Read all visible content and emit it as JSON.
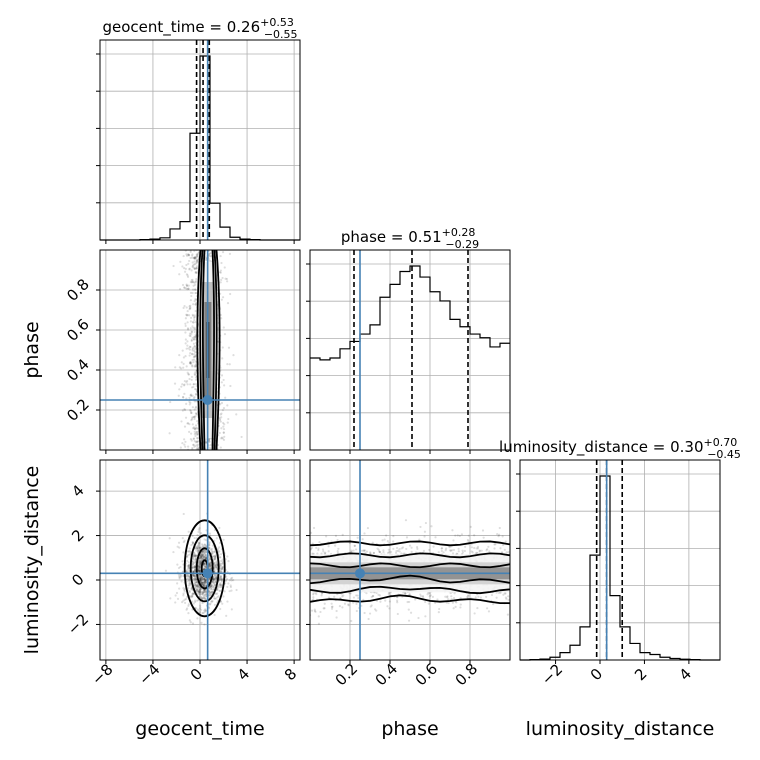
{
  "chart_data": {
    "type": "corner",
    "parameters": [
      {
        "name": "geocent_time",
        "title": "geocent_time = 0.26",
        "title_sup": "+0.53",
        "title_sub": "−0.55",
        "xlim": [
          -8.5,
          8.5
        ],
        "ticks": [
          -8,
          -4,
          0,
          4,
          8
        ],
        "tick_labels": [
          "−8",
          "−4",
          "0",
          "4",
          "8"
        ],
        "truth": 0.65,
        "quantiles": [
          -0.29,
          0.26,
          0.79
        ],
        "hist_edges": [
          -8.5,
          -7.65,
          -6.8,
          -5.95,
          -5.1,
          -4.25,
          -3.4,
          -2.55,
          -1.7,
          -0.85,
          0.0,
          0.85,
          1.7,
          2.55,
          3.4,
          4.25,
          5.1,
          5.95,
          6.8,
          7.65,
          8.5
        ],
        "hist_values": [
          0,
          0,
          0,
          0,
          0.002,
          0.005,
          0.012,
          0.06,
          0.1,
          0.58,
          1.0,
          0.2,
          0.07,
          0.015,
          0.005,
          0.002,
          0,
          0,
          0,
          0
        ]
      },
      {
        "name": "phase",
        "title": "phase = 0.51",
        "title_sup": "+0.28",
        "title_sub": "−0.29",
        "xlim": [
          0.0,
          1.0
        ],
        "ticks": [
          0.2,
          0.4,
          0.6,
          0.8
        ],
        "tick_labels": [
          "0.2",
          "0.4",
          "0.6",
          "0.8"
        ],
        "truth": 0.25,
        "quantiles": [
          0.22,
          0.51,
          0.79
        ],
        "hist_edges": [
          0.0,
          0.05,
          0.1,
          0.15,
          0.2,
          0.25,
          0.3,
          0.35,
          0.4,
          0.45,
          0.5,
          0.55,
          0.6,
          0.65,
          0.7,
          0.75,
          0.8,
          0.85,
          0.9,
          0.95,
          1.0
        ],
        "hist_values": [
          0.5,
          0.49,
          0.5,
          0.55,
          0.59,
          0.63,
          0.68,
          0.83,
          0.9,
          0.97,
          1.0,
          0.94,
          0.86,
          0.81,
          0.71,
          0.67,
          0.63,
          0.61,
          0.56,
          0.58
        ]
      },
      {
        "name": "luminosity_distance",
        "title": "luminosity_distance = 0.30",
        "title_sup": "+0.70",
        "title_sub": "−0.45",
        "xlim": [
          -3.6,
          5.4
        ],
        "ticks": [
          -2,
          0,
          2,
          4
        ],
        "tick_labels": [
          "−2",
          "0",
          "2",
          "4"
        ],
        "truth": 0.3,
        "quantiles": [
          -0.15,
          0.3,
          1.0
        ],
        "hist_edges": [
          -3.6,
          -3.15,
          -2.7,
          -2.25,
          -1.8,
          -1.35,
          -0.9,
          -0.45,
          0.0,
          0.45,
          0.9,
          1.35,
          1.8,
          2.25,
          2.7,
          3.15,
          3.6,
          4.05,
          4.5,
          4.95,
          5.4
        ],
        "hist_values": [
          0,
          0.002,
          0.005,
          0.015,
          0.04,
          0.08,
          0.18,
          0.57,
          1.0,
          0.35,
          0.18,
          0.09,
          0.04,
          0.03,
          0.015,
          0.008,
          0.004,
          0.002,
          0,
          0
        ]
      }
    ],
    "axis_labels": [
      "geocent_time",
      "phase",
      "luminosity_distance"
    ],
    "y_ticks": {
      "phase": {
        "ylim": [
          0.0,
          1.0
        ],
        "ticks": [
          0.2,
          0.4,
          0.6,
          0.8
        ],
        "tick_labels": [
          "0.2",
          "0.4",
          "0.6",
          "0.8"
        ]
      },
      "luminosity_distance": {
        "ylim": [
          -3.6,
          5.4
        ],
        "ticks": [
          -2,
          0,
          2,
          4
        ],
        "tick_labels": [
          "−2",
          "0",
          "2",
          "4"
        ]
      }
    },
    "grid": true
  }
}
